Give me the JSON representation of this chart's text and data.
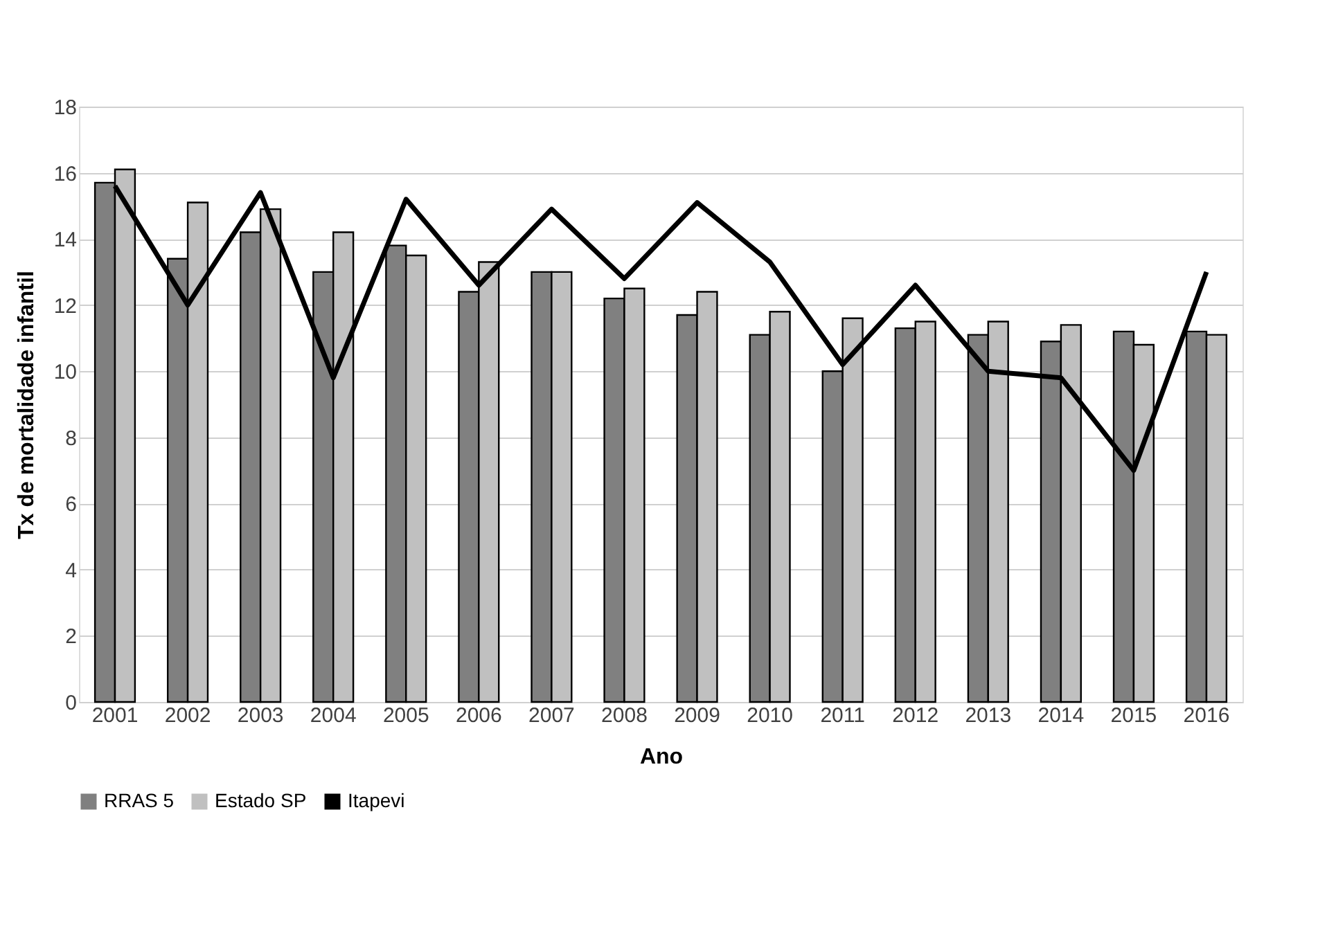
{
  "chart_data": {
    "type": "bar",
    "xlabel": "Ano",
    "ylabel": "Tx de mortalidade infantil",
    "categories": [
      "2001",
      "2002",
      "2003",
      "2004",
      "2005",
      "2006",
      "2007",
      "2008",
      "2009",
      "2010",
      "2011",
      "2012",
      "2013",
      "2014",
      "2015",
      "2016"
    ],
    "series": [
      {
        "name": "RRAS 5",
        "color": "#808080",
        "values": [
          15.7,
          13.4,
          14.2,
          13.0,
          13.8,
          12.4,
          13.0,
          12.2,
          11.7,
          11.1,
          10.0,
          11.3,
          11.1,
          10.9,
          11.2,
          11.2
        ]
      },
      {
        "name": "Estado SP",
        "color": "#c0c0c0",
        "values": [
          16.1,
          15.1,
          14.9,
          14.2,
          13.5,
          13.3,
          13.0,
          12.5,
          12.4,
          11.8,
          11.6,
          11.5,
          11.5,
          11.4,
          10.8,
          11.1
        ]
      },
      {
        "name": "Itapevi",
        "color": "#000000",
        "type": "line",
        "values": [
          15.6,
          12.0,
          15.4,
          9.8,
          15.2,
          12.6,
          14.9,
          12.8,
          15.1,
          13.3,
          10.2,
          12.6,
          10.0,
          9.8,
          7.0,
          13.0
        ]
      }
    ],
    "ylim": [
      0,
      18
    ],
    "yticks": [
      0,
      2,
      4,
      6,
      8,
      10,
      12,
      14,
      16,
      18
    ],
    "grid": "y",
    "legend": "bottom",
    "line_style": "solid",
    "marker": "none"
  }
}
